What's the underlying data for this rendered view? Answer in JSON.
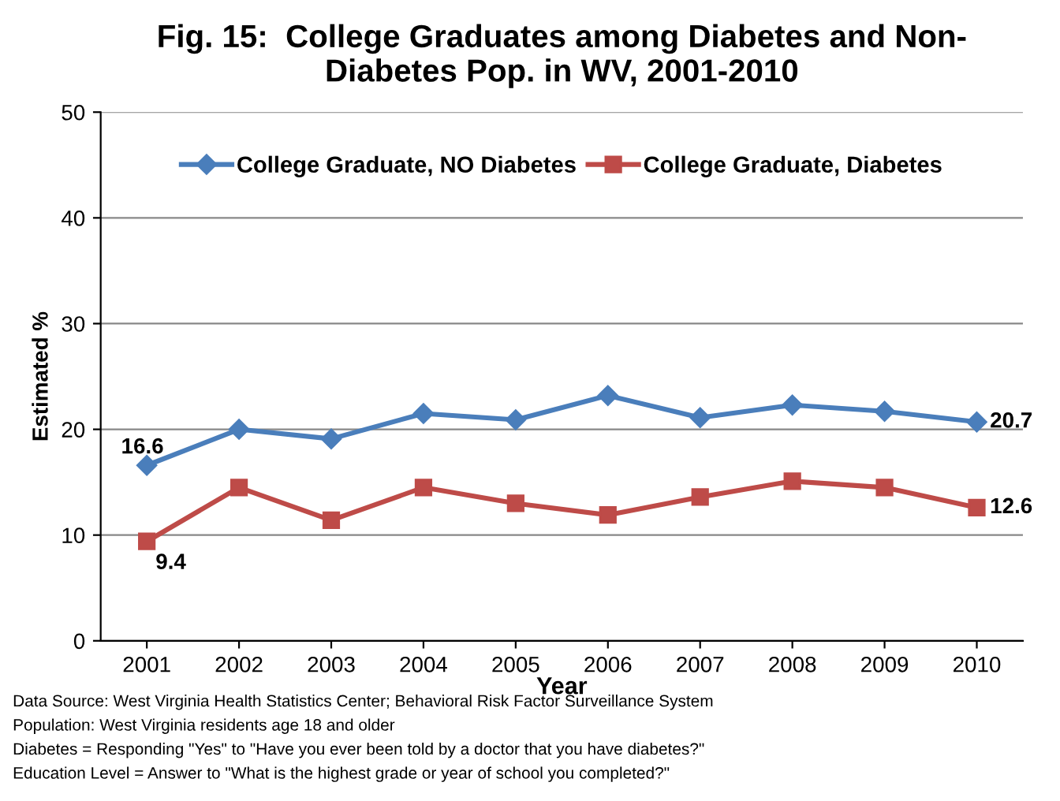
{
  "chart_data": {
    "type": "line",
    "title": "Fig. 15:  College Graduates among Diabetes and Non-\nDiabetes Pop. in WV, 2001-2010",
    "xlabel": "Year",
    "ylabel": "Estimated %",
    "categories": [
      "2001",
      "2002",
      "2003",
      "2004",
      "2005",
      "2006",
      "2007",
      "2008",
      "2009",
      "2010"
    ],
    "series": [
      {
        "name": "College Graduate, NO Diabetes",
        "color": "#4a7ebb",
        "marker": "diamond",
        "values": [
          16.6,
          20.0,
          19.1,
          21.5,
          20.9,
          23.2,
          21.1,
          22.3,
          21.7,
          20.7
        ],
        "value_labels": [
          "16.6",
          null,
          null,
          null,
          null,
          null,
          null,
          null,
          null,
          "20.7"
        ]
      },
      {
        "name": "College Graduate, Diabetes",
        "color": "#be4b48",
        "marker": "square",
        "values": [
          9.4,
          14.5,
          11.4,
          14.5,
          13.0,
          11.9,
          13.6,
          15.1,
          14.5,
          12.6
        ],
        "value_labels": [
          "9.4",
          null,
          null,
          null,
          null,
          null,
          null,
          null,
          null,
          "12.6"
        ]
      }
    ],
    "ylim": [
      0,
      50
    ],
    "yticks": [
      0,
      10,
      20,
      30,
      40,
      50
    ],
    "grid": "y",
    "legend": "top",
    "annotations": [
      "Data Source: West Virginia Health Statistics Center; Behavioral Risk Factor Surveillance System",
      "Population: West Virginia residents age 18 and older",
      "Diabetes = Responding \"Yes\" to \"Have you ever been told by a doctor that you have diabetes?\"",
      "Education Level = Answer to \"What is the highest grade or year of school you completed?\""
    ]
  }
}
